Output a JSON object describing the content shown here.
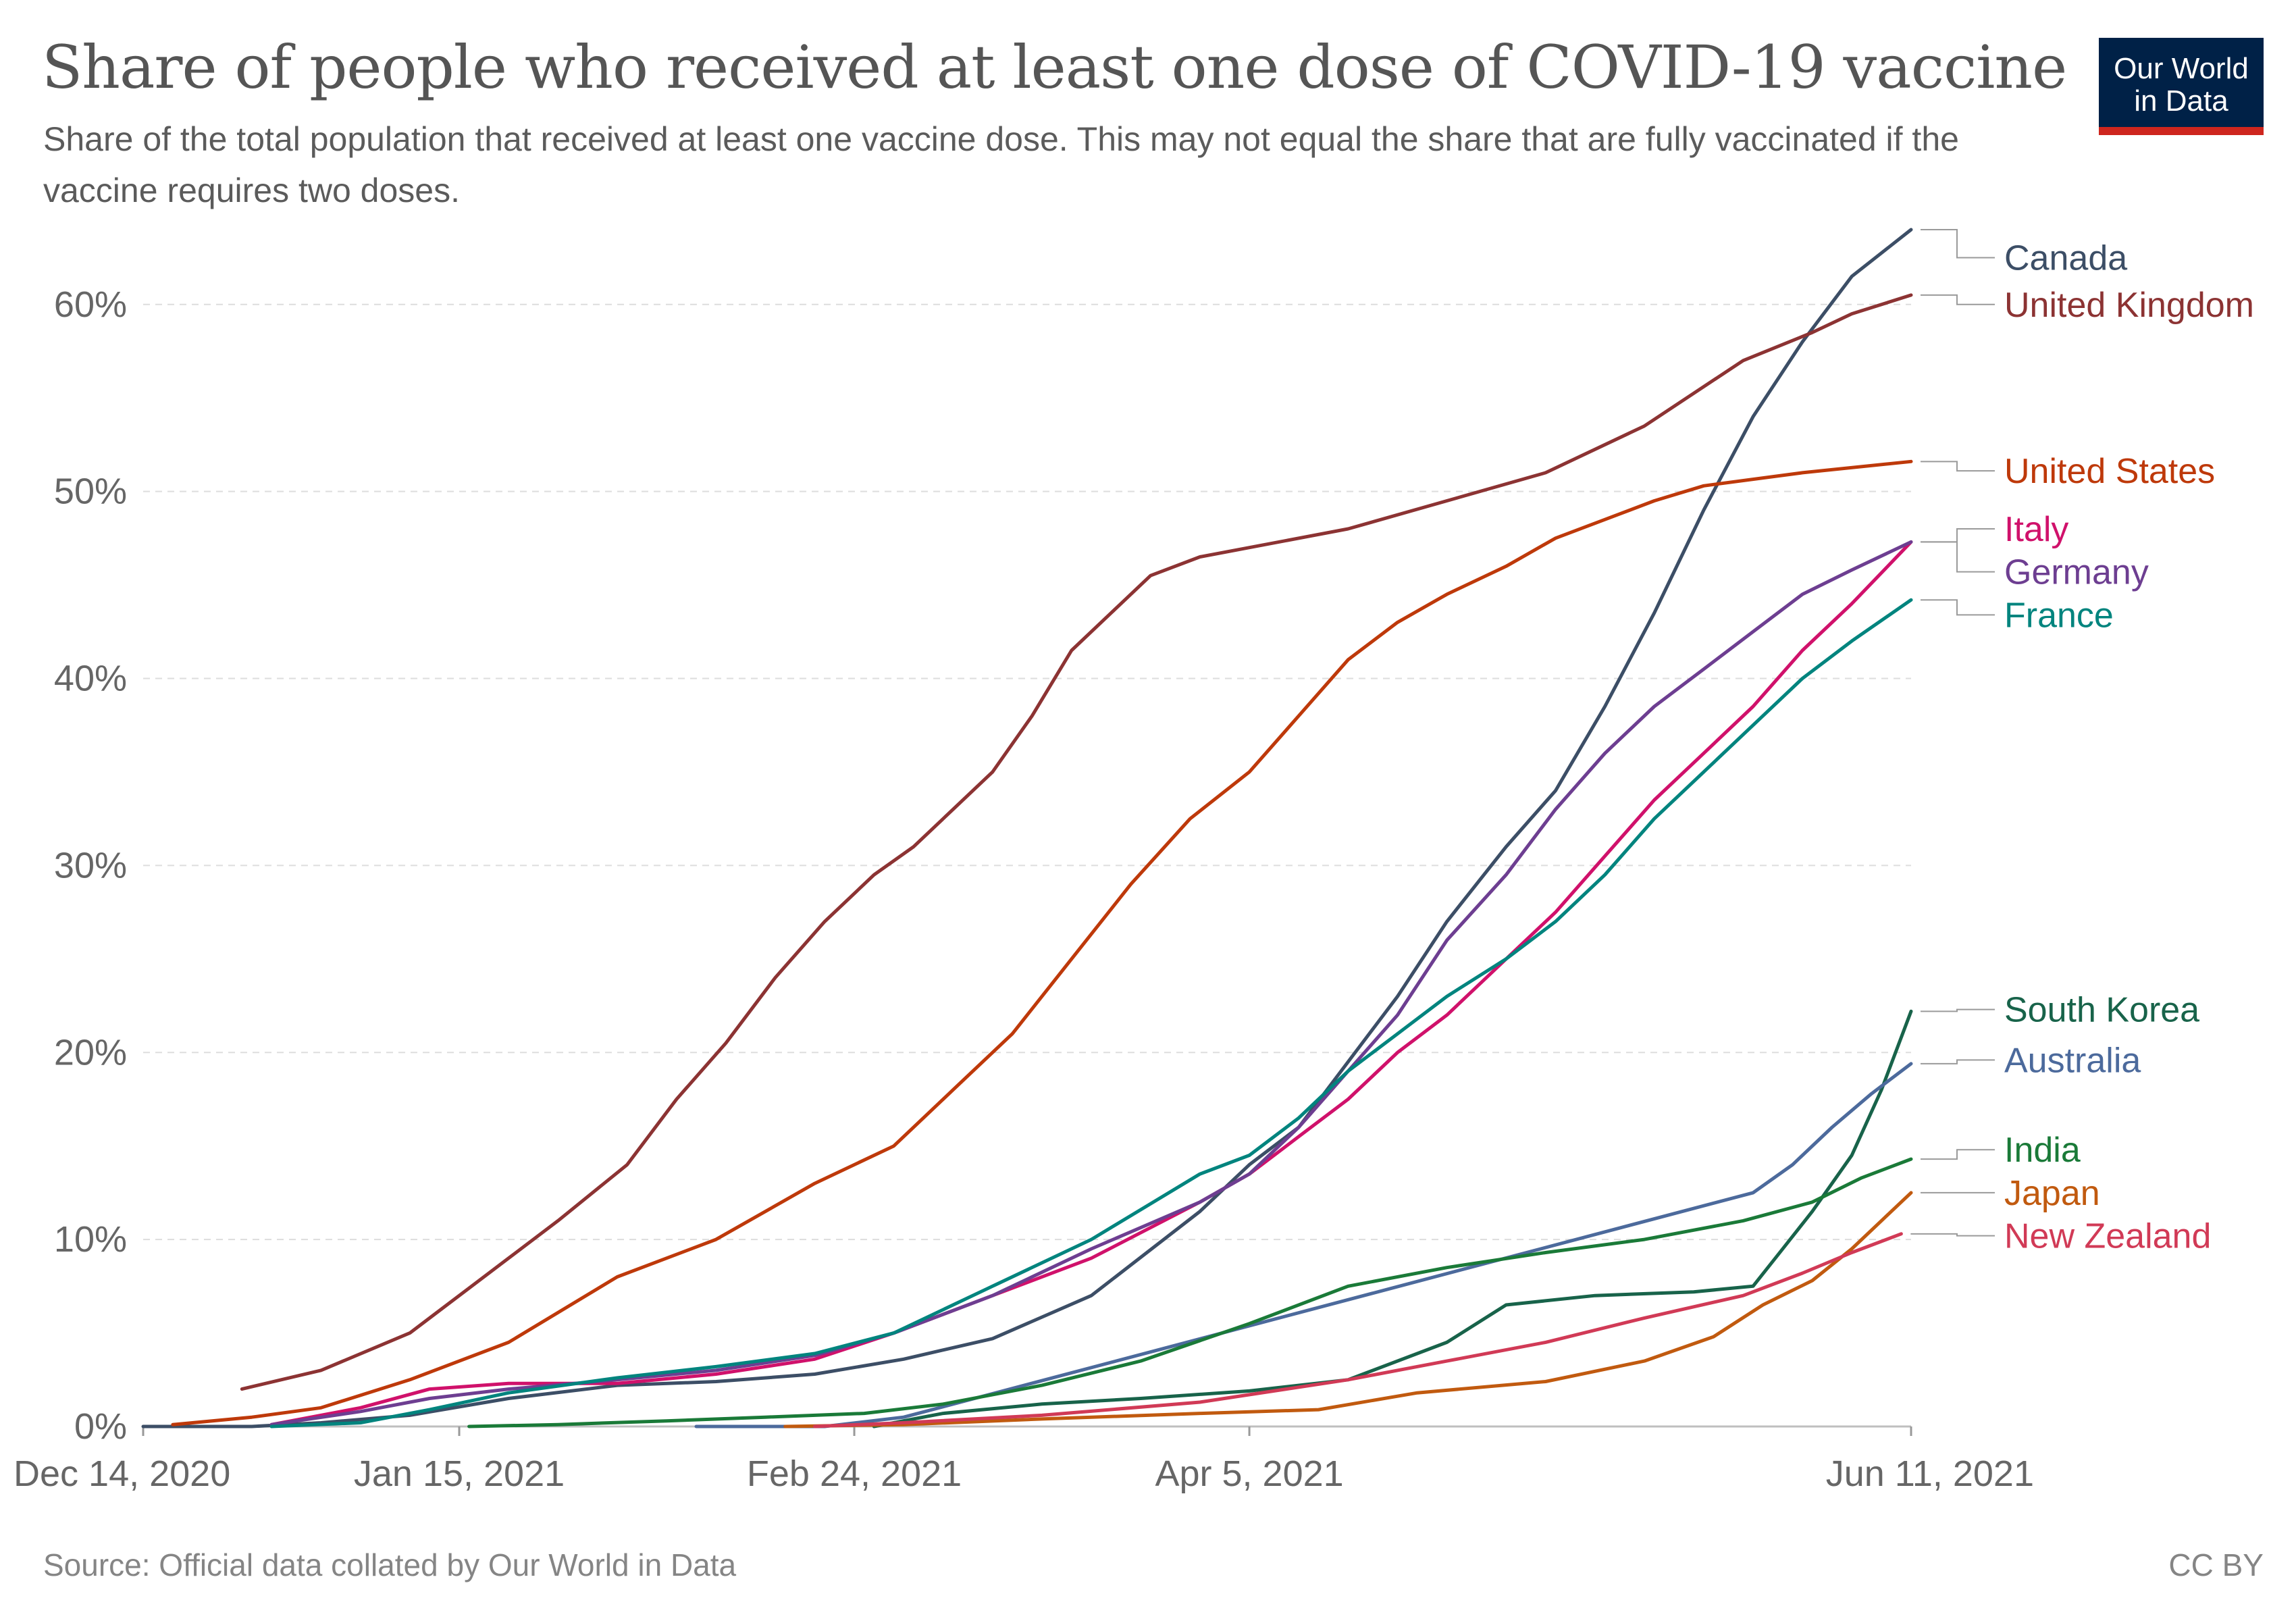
{
  "header": {
    "title": "Share of people who received at least one dose of COVID-19 vaccine",
    "subtitle": "Share of the total population that received at least one vaccine dose. This may not equal the share that are fully vaccinated if the vaccine requires two doses.",
    "logo_line1": "Our World",
    "logo_line2": "in Data"
  },
  "footer": {
    "source": "Source: Official data collated by Our World in Data",
    "license": "CC BY"
  },
  "colors": {
    "logo_bg": "#002147",
    "logo_accent": "#ce261e"
  },
  "chart_data": {
    "type": "line",
    "title": "Share of people who received at least one dose of COVID-19 vaccine",
    "subtitle": "Share of the total population that received at least one vaccine dose. This may not equal the share that are fully vaccinated if the vaccine requires two doses.",
    "xlabel": "",
    "ylabel": "",
    "x_range": [
      "2020-12-14",
      "2021-06-11"
    ],
    "ylim": [
      0,
      64
    ],
    "x_ticks": [
      {
        "date": "2020-12-14",
        "label": "Dec 14, 2020"
      },
      {
        "date": "2021-01-15",
        "label": "Jan 15, 2021"
      },
      {
        "date": "2021-02-24",
        "label": "Feb 24, 2021"
      },
      {
        "date": "2021-04-05",
        "label": "Apr 5, 2021"
      },
      {
        "date": "2021-06-11",
        "label": "Jun 11, 2021"
      }
    ],
    "y_ticks": [
      {
        "value": 0,
        "label": "0%"
      },
      {
        "value": 10,
        "label": "10%"
      },
      {
        "value": 20,
        "label": "20%"
      },
      {
        "value": 30,
        "label": "30%"
      },
      {
        "value": 40,
        "label": "40%"
      },
      {
        "value": 50,
        "label": "50%"
      },
      {
        "value": 60,
        "label": "60%"
      }
    ],
    "grid": "horizontal dashed",
    "legend": "right, labels at line ends",
    "series": [
      {
        "name": "Canada",
        "color": "#3c4e66",
        "points": [
          [
            "2020-12-14",
            0
          ],
          [
            "2020-12-25",
            0
          ],
          [
            "2021-01-01",
            0.2
          ],
          [
            "2021-01-10",
            0.6
          ],
          [
            "2021-01-20",
            1.5
          ],
          [
            "2021-01-31",
            2.2
          ],
          [
            "2021-02-10",
            2.4
          ],
          [
            "2021-02-20",
            2.8
          ],
          [
            "2021-03-01",
            3.6
          ],
          [
            "2021-03-10",
            4.7
          ],
          [
            "2021-03-20",
            7
          ],
          [
            "2021-03-31",
            11.5
          ],
          [
            "2021-04-05",
            14
          ],
          [
            "2021-04-10",
            16
          ],
          [
            "2021-04-15",
            19.5
          ],
          [
            "2021-04-20",
            23
          ],
          [
            "2021-04-25",
            27
          ],
          [
            "2021-05-01",
            31
          ],
          [
            "2021-05-06",
            34
          ],
          [
            "2021-05-11",
            38.5
          ],
          [
            "2021-05-16",
            43.5
          ],
          [
            "2021-05-21",
            49
          ],
          [
            "2021-05-26",
            54
          ],
          [
            "2021-05-31",
            58
          ],
          [
            "2021-06-05",
            61.5
          ],
          [
            "2021-06-11",
            64
          ]
        ]
      },
      {
        "name": "United Kingdom",
        "color": "#8c3333",
        "points": [
          [
            "2020-12-24",
            2
          ],
          [
            "2021-01-01",
            3
          ],
          [
            "2021-01-10",
            5
          ],
          [
            "2021-01-20",
            9
          ],
          [
            "2021-01-25",
            11
          ],
          [
            "2021-02-01",
            14
          ],
          [
            "2021-02-06",
            17.5
          ],
          [
            "2021-02-11",
            20.5
          ],
          [
            "2021-02-16",
            24
          ],
          [
            "2021-02-21",
            27
          ],
          [
            "2021-02-26",
            29.5
          ],
          [
            "2021-03-02",
            31
          ],
          [
            "2021-03-06",
            33
          ],
          [
            "2021-03-10",
            35
          ],
          [
            "2021-03-14",
            38
          ],
          [
            "2021-03-18",
            41.5
          ],
          [
            "2021-03-22",
            43.5
          ],
          [
            "2021-03-26",
            45.5
          ],
          [
            "2021-03-31",
            46.5
          ],
          [
            "2021-04-05",
            47
          ],
          [
            "2021-04-15",
            48
          ],
          [
            "2021-04-25",
            49.5
          ],
          [
            "2021-05-05",
            51
          ],
          [
            "2021-05-15",
            53.5
          ],
          [
            "2021-05-25",
            57
          ],
          [
            "2021-06-01",
            58.5
          ],
          [
            "2021-06-05",
            59.5
          ],
          [
            "2021-06-11",
            60.5
          ]
        ]
      },
      {
        "name": "United States",
        "color": "#be390a",
        "points": [
          [
            "2020-12-17",
            0.1
          ],
          [
            "2020-12-25",
            0.5
          ],
          [
            "2021-01-01",
            1
          ],
          [
            "2021-01-10",
            2.5
          ],
          [
            "2021-01-20",
            4.5
          ],
          [
            "2021-01-31",
            8
          ],
          [
            "2021-02-10",
            10
          ],
          [
            "2021-02-20",
            13
          ],
          [
            "2021-02-28",
            15
          ],
          [
            "2021-03-06",
            18
          ],
          [
            "2021-03-12",
            21
          ],
          [
            "2021-03-18",
            25
          ],
          [
            "2021-03-24",
            29
          ],
          [
            "2021-03-30",
            32.5
          ],
          [
            "2021-04-05",
            35
          ],
          [
            "2021-04-10",
            38
          ],
          [
            "2021-04-15",
            41
          ],
          [
            "2021-04-20",
            43
          ],
          [
            "2021-04-25",
            44.5
          ],
          [
            "2021-05-01",
            46
          ],
          [
            "2021-05-06",
            47.5
          ],
          [
            "2021-05-11",
            48.5
          ],
          [
            "2021-05-16",
            49.5
          ],
          [
            "2021-05-21",
            50.3
          ],
          [
            "2021-05-31",
            51
          ],
          [
            "2021-06-11",
            51.6
          ]
        ]
      },
      {
        "name": "Italy",
        "color": "#d0116b",
        "points": [
          [
            "2020-12-27",
            0.1
          ],
          [
            "2021-01-05",
            1
          ],
          [
            "2021-01-12",
            2
          ],
          [
            "2021-01-20",
            2.3
          ],
          [
            "2021-01-31",
            2.3
          ],
          [
            "2021-02-10",
            2.8
          ],
          [
            "2021-02-20",
            3.6
          ],
          [
            "2021-02-28",
            5
          ],
          [
            "2021-03-10",
            7
          ],
          [
            "2021-03-20",
            9
          ],
          [
            "2021-03-31",
            12
          ],
          [
            "2021-04-05",
            13.5
          ],
          [
            "2021-04-10",
            15.5
          ],
          [
            "2021-04-15",
            17.5
          ],
          [
            "2021-04-20",
            20
          ],
          [
            "2021-04-25",
            22
          ],
          [
            "2021-05-01",
            25
          ],
          [
            "2021-05-06",
            27.5
          ],
          [
            "2021-05-11",
            30.5
          ],
          [
            "2021-05-16",
            33.5
          ],
          [
            "2021-05-21",
            36
          ],
          [
            "2021-05-26",
            38.5
          ],
          [
            "2021-05-31",
            41.5
          ],
          [
            "2021-06-05",
            44
          ],
          [
            "2021-06-11",
            47.3
          ]
        ]
      },
      {
        "name": "Germany",
        "color": "#6d3e91",
        "points": [
          [
            "2020-12-27",
            0.1
          ],
          [
            "2021-01-05",
            0.8
          ],
          [
            "2021-01-12",
            1.5
          ],
          [
            "2021-01-20",
            2
          ],
          [
            "2021-01-31",
            2.5
          ],
          [
            "2021-02-10",
            3
          ],
          [
            "2021-02-20",
            3.8
          ],
          [
            "2021-02-28",
            5
          ],
          [
            "2021-03-10",
            7
          ],
          [
            "2021-03-20",
            9.5
          ],
          [
            "2021-03-31",
            12
          ],
          [
            "2021-04-05",
            13.5
          ],
          [
            "2021-04-10",
            16
          ],
          [
            "2021-04-15",
            19
          ],
          [
            "2021-04-20",
            22
          ],
          [
            "2021-04-25",
            26
          ],
          [
            "2021-05-01",
            29.5
          ],
          [
            "2021-05-06",
            33
          ],
          [
            "2021-05-11",
            36
          ],
          [
            "2021-05-16",
            38.5
          ],
          [
            "2021-05-21",
            40.5
          ],
          [
            "2021-05-26",
            42.5
          ],
          [
            "2021-05-31",
            44.5
          ],
          [
            "2021-06-05",
            45.8
          ],
          [
            "2021-06-11",
            47.3
          ]
        ]
      },
      {
        "name": "France",
        "color": "#00847e",
        "points": [
          [
            "2020-12-27",
            0
          ],
          [
            "2021-01-05",
            0.2
          ],
          [
            "2021-01-12",
            0.9
          ],
          [
            "2021-01-20",
            1.8
          ],
          [
            "2021-01-31",
            2.6
          ],
          [
            "2021-02-10",
            3.2
          ],
          [
            "2021-02-20",
            3.9
          ],
          [
            "2021-02-28",
            5
          ],
          [
            "2021-03-10",
            7.5
          ],
          [
            "2021-03-20",
            10
          ],
          [
            "2021-03-31",
            13.5
          ],
          [
            "2021-04-05",
            14.5
          ],
          [
            "2021-04-10",
            16.5
          ],
          [
            "2021-04-15",
            19
          ],
          [
            "2021-04-20",
            21
          ],
          [
            "2021-04-25",
            23
          ],
          [
            "2021-05-01",
            25
          ],
          [
            "2021-05-06",
            27
          ],
          [
            "2021-05-11",
            29.5
          ],
          [
            "2021-05-16",
            32.5
          ],
          [
            "2021-05-21",
            35
          ],
          [
            "2021-05-26",
            37.5
          ],
          [
            "2021-05-31",
            40
          ],
          [
            "2021-06-05",
            42
          ],
          [
            "2021-06-11",
            44.2
          ]
        ]
      },
      {
        "name": "South Korea",
        "color": "#18634a",
        "points": [
          [
            "2021-02-26",
            0
          ],
          [
            "2021-03-05",
            0.7
          ],
          [
            "2021-03-15",
            1.2
          ],
          [
            "2021-03-25",
            1.5
          ],
          [
            "2021-04-05",
            1.9
          ],
          [
            "2021-04-15",
            2.5
          ],
          [
            "2021-04-25",
            4.5
          ],
          [
            "2021-05-01",
            6.5
          ],
          [
            "2021-05-10",
            7
          ],
          [
            "2021-05-20",
            7.2
          ],
          [
            "2021-05-26",
            7.5
          ],
          [
            "2021-05-29",
            9.5
          ],
          [
            "2021-06-01",
            11.5
          ],
          [
            "2021-06-05",
            14.5
          ],
          [
            "2021-06-08",
            18
          ],
          [
            "2021-06-11",
            22.2
          ]
        ]
      },
      {
        "name": "Australia",
        "color": "#4c6a9c",
        "points": [
          [
            "2021-02-08",
            0
          ],
          [
            "2021-02-21",
            0
          ],
          [
            "2021-03-01",
            0.5
          ],
          [
            "2021-05-26",
            12.5
          ],
          [
            "2021-05-30",
            14
          ],
          [
            "2021-06-03",
            16
          ],
          [
            "2021-06-07",
            17.8
          ],
          [
            "2021-06-11",
            19.4
          ]
        ]
      },
      {
        "name": "India",
        "color": "#1a7a38",
        "points": [
          [
            "2021-01-16",
            0
          ],
          [
            "2021-01-25",
            0.1
          ],
          [
            "2021-02-05",
            0.3
          ],
          [
            "2021-02-15",
            0.5
          ],
          [
            "2021-02-25",
            0.7
          ],
          [
            "2021-03-05",
            1.2
          ],
          [
            "2021-03-15",
            2.2
          ],
          [
            "2021-03-25",
            3.5
          ],
          [
            "2021-04-05",
            5.5
          ],
          [
            "2021-04-15",
            7.5
          ],
          [
            "2021-04-25",
            8.5
          ],
          [
            "2021-05-05",
            9.3
          ],
          [
            "2021-05-15",
            10
          ],
          [
            "2021-05-25",
            11
          ],
          [
            "2021-06-01",
            12
          ],
          [
            "2021-06-06",
            13.3
          ],
          [
            "2021-06-11",
            14.3
          ]
        ]
      },
      {
        "name": "Japan",
        "color": "#c15a0f",
        "points": [
          [
            "2021-02-17",
            0
          ],
          [
            "2021-03-01",
            0.1
          ],
          [
            "2021-03-15",
            0.4
          ],
          [
            "2021-03-31",
            0.7
          ],
          [
            "2021-04-12",
            0.9
          ],
          [
            "2021-04-22",
            1.8
          ],
          [
            "2021-05-05",
            2.4
          ],
          [
            "2021-05-15",
            3.5
          ],
          [
            "2021-05-22",
            4.8
          ],
          [
            "2021-05-27",
            6.5
          ],
          [
            "2021-06-01",
            7.8
          ],
          [
            "2021-06-05",
            9.5
          ],
          [
            "2021-06-08",
            11
          ],
          [
            "2021-06-11",
            12.5
          ]
        ]
      },
      {
        "name": "New Zealand",
        "color": "#d13a56",
        "points": [
          [
            "2021-02-20",
            0
          ],
          [
            "2021-03-01",
            0.2
          ],
          [
            "2021-03-15",
            0.6
          ],
          [
            "2021-03-31",
            1.3
          ],
          [
            "2021-04-15",
            2.5
          ],
          [
            "2021-04-25",
            3.5
          ],
          [
            "2021-05-05",
            4.5
          ],
          [
            "2021-05-15",
            5.8
          ],
          [
            "2021-05-25",
            7
          ],
          [
            "2021-05-31",
            8.2
          ],
          [
            "2021-06-05",
            9.3
          ],
          [
            "2021-06-10",
            10.3
          ]
        ]
      }
    ],
    "end_labels": [
      {
        "name": "Canada",
        "color": "#3c4e66",
        "label_value": 62.5
      },
      {
        "name": "United Kingdom",
        "color": "#8c3333",
        "label_value": 60.0
      },
      {
        "name": "United States",
        "color": "#be390a",
        "label_value": 51.1
      },
      {
        "name": "Italy",
        "color": "#d0116b",
        "label_value": 48.0
      },
      {
        "name": "Germany",
        "color": "#6d3e91",
        "label_value": 45.7
      },
      {
        "name": "France",
        "color": "#00847e",
        "label_value": 43.4
      },
      {
        "name": "South Korea",
        "color": "#18634a",
        "label_value": 22.3
      },
      {
        "name": "Australia",
        "color": "#4c6a9c",
        "label_value": 19.6
      },
      {
        "name": "India",
        "color": "#1a7a38",
        "label_value": 14.8
      },
      {
        "name": "Japan",
        "color": "#c15a0f",
        "label_value": 12.5
      },
      {
        "name": "New Zealand",
        "color": "#d13a56",
        "label_value": 10.2
      }
    ]
  }
}
